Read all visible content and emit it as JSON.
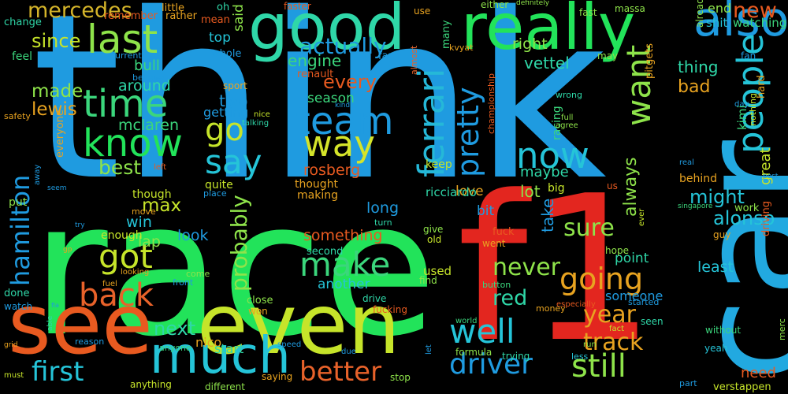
{
  "words": [
    {
      "t": "think",
      "c": "#1f9be0"
    },
    {
      "t": "race",
      "c": "#22e35a"
    },
    {
      "t": "f1",
      "c": "#e3261f"
    },
    {
      "t": "car",
      "c": "#22a9e0"
    },
    {
      "t": "see",
      "c": "#e85a20"
    },
    {
      "t": "even",
      "c": "#c6e42a"
    },
    {
      "t": "good",
      "c": "#2fd7a8"
    },
    {
      "t": "really",
      "c": "#22e35a"
    },
    {
      "t": "much",
      "c": "#25c4d8"
    },
    {
      "t": "also",
      "c": "#1f9be0"
    },
    {
      "t": "last",
      "c": "#8ee34a"
    },
    {
      "t": "time",
      "c": "#3bd67c"
    },
    {
      "t": "know",
      "c": "#22e35a"
    },
    {
      "t": "ferrari",
      "c": "#25b8d8"
    },
    {
      "t": "pretty",
      "c": "#1f9be0"
    },
    {
      "t": "team",
      "c": "#1f9be0"
    },
    {
      "t": "way",
      "c": "#d4e42a"
    },
    {
      "t": "go",
      "c": "#c6e42a"
    },
    {
      "t": "say",
      "c": "#25c4d8"
    },
    {
      "t": "want",
      "c": "#8ee34a"
    },
    {
      "t": "now",
      "c": "#25c4d8"
    },
    {
      "t": "people",
      "c": "#25c4d8"
    },
    {
      "t": "hamilton",
      "c": "#1f9be0"
    },
    {
      "t": "got",
      "c": "#c6e42a"
    },
    {
      "t": "make",
      "c": "#3bd67c"
    },
    {
      "t": "back",
      "c": "#e8622a"
    },
    {
      "t": "best",
      "c": "#8ee34a"
    },
    {
      "t": "going",
      "c": "#e8a320"
    },
    {
      "t": "well",
      "c": "#25c4d8"
    },
    {
      "t": "driver",
      "c": "#1f9be0"
    },
    {
      "t": "still",
      "c": "#8ee34a"
    },
    {
      "t": "better",
      "c": "#e8622a"
    },
    {
      "t": "first",
      "c": "#25c4d8"
    },
    {
      "t": "track",
      "c": "#e8a320"
    },
    {
      "t": "year",
      "c": "#e8a320"
    },
    {
      "t": "alonso",
      "c": "#25c4d8"
    },
    {
      "t": "never",
      "c": "#8ee34a"
    },
    {
      "t": "probably",
      "c": "#8ee34a"
    },
    {
      "t": "sure",
      "c": "#8ee34a"
    },
    {
      "t": "mercedes",
      "c": "#d4b42a"
    },
    {
      "t": "next",
      "c": "#2fd7a8"
    },
    {
      "t": "red",
      "c": "#2fd7a8"
    },
    {
      "t": "new",
      "c": "#e85a20"
    },
    {
      "t": "actually",
      "c": "#1f9be0"
    },
    {
      "t": "every",
      "c": "#e85a20"
    },
    {
      "t": "always",
      "c": "#8ee34a"
    },
    {
      "t": "since",
      "c": "#c6e42a"
    },
    {
      "t": "max",
      "c": "#c6e42a"
    },
    {
      "t": "lewis",
      "c": "#e8a320"
    },
    {
      "t": "made",
      "c": "#8ee34a"
    },
    {
      "t": "something",
      "c": "#e85a20"
    },
    {
      "t": "engine",
      "c": "#3bd67c"
    },
    {
      "t": "right",
      "c": "#8ee34a"
    },
    {
      "t": "vettel",
      "c": "#2fd7a8"
    },
    {
      "t": "rosberg",
      "c": "#e85a20"
    },
    {
      "t": "season",
      "c": "#3bd67c"
    },
    {
      "t": "mclaren",
      "c": "#3bd67c"
    },
    {
      "t": "around",
      "c": "#2fd7a8"
    },
    {
      "t": "bull",
      "c": "#3bd67c"
    },
    {
      "t": "long",
      "c": "#1f9be0"
    },
    {
      "t": "look",
      "c": "#1f9be0"
    },
    {
      "t": "lot",
      "c": "#8ee34a"
    },
    {
      "t": "might",
      "c": "#25c4d8"
    },
    {
      "t": "thing",
      "c": "#2fd7a8"
    },
    {
      "t": "bad",
      "c": "#e8a320"
    },
    {
      "t": "win",
      "c": "#25c4d8"
    },
    {
      "t": "lap",
      "c": "#8ee34a"
    },
    {
      "t": "maybe",
      "c": "#2fd7a8"
    },
    {
      "t": "bit",
      "c": "#1f9be0"
    },
    {
      "t": "love",
      "c": "#e8a320"
    },
    {
      "t": "take",
      "c": "#1f9be0"
    },
    {
      "t": "point",
      "c": "#2fd7a8"
    },
    {
      "t": "least",
      "c": "#25c4d8"
    },
    {
      "t": "someone",
      "c": "#1f9be0"
    },
    {
      "t": "need",
      "c": "#e85a20"
    },
    {
      "t": "end",
      "c": "#8ee34a"
    },
    {
      "t": "great",
      "c": "#c6e42a"
    },
    {
      "t": "kimi",
      "c": "#3bd67c"
    },
    {
      "t": "ricciardo",
      "c": "#2fd7a8"
    },
    {
      "t": "behind",
      "c": "#e8a320"
    },
    {
      "t": "two",
      "c": "#1f9be0"
    },
    {
      "t": "top",
      "c": "#25c4d8"
    },
    {
      "t": "said",
      "c": "#8ee34a"
    },
    {
      "t": "getting",
      "c": "#1f9be0"
    },
    {
      "t": "another",
      "c": "#25c4d8"
    },
    {
      "t": "nico",
      "c": "#e8a320"
    },
    {
      "t": "used",
      "c": "#c6e42a"
    },
    {
      "t": "start",
      "c": "#2fd7a8"
    },
    {
      "t": "work",
      "c": "#8ee34a"
    },
    {
      "t": "racing",
      "c": "#3bd67c"
    },
    {
      "t": "shit",
      "c": "#25c4d8"
    },
    {
      "t": "watching",
      "c": "#3bd67c"
    },
    {
      "t": "enough",
      "c": "#c6e42a"
    },
    {
      "t": "quite",
      "c": "#c6e42a"
    },
    {
      "t": "though",
      "c": "#c6e42a"
    },
    {
      "t": "making",
      "c": "#e8a320"
    },
    {
      "t": "thought",
      "c": "#e8a320"
    },
    {
      "t": "keep",
      "c": "#c6e42a"
    },
    {
      "t": "big",
      "c": "#c6e42a"
    },
    {
      "t": "put",
      "c": "#8ee34a"
    },
    {
      "t": "everyone",
      "c": "#e8a320"
    },
    {
      "t": "feel",
      "c": "#3bd67c"
    },
    {
      "t": "change",
      "c": "#2fd7a8"
    },
    {
      "t": "remember",
      "c": "#e85a20"
    },
    {
      "t": "little",
      "c": "#e8a320"
    },
    {
      "t": "rather",
      "c": "#e8a320"
    },
    {
      "t": "mean",
      "c": "#e85a20"
    },
    {
      "t": "oh",
      "c": "#2fd7a8"
    },
    {
      "t": "faster",
      "c": "#e85a20"
    },
    {
      "t": "use",
      "c": "#e8a320"
    },
    {
      "t": "either",
      "c": "#8ee34a"
    },
    {
      "t": "fast",
      "c": "#8ee34a"
    },
    {
      "t": "massa",
      "c": "#8ee34a"
    },
    {
      "t": "many",
      "c": "#3bd67c"
    },
    {
      "t": "far",
      "c": "#1f9be0"
    },
    {
      "t": "whole",
      "c": "#1f9be0"
    },
    {
      "t": "current",
      "c": "#1f9be0"
    },
    {
      "t": "renault",
      "c": "#e85a20"
    },
    {
      "t": "almost",
      "c": "#e8622a"
    },
    {
      "t": "kvyat",
      "c": "#e8a320"
    },
    {
      "t": "may",
      "c": "#8ee34a"
    },
    {
      "t": "already",
      "c": "#8ee34a"
    },
    {
      "t": "hard",
      "c": "#e8a320"
    },
    {
      "t": "fan",
      "c": "#1f9be0"
    },
    {
      "t": "pitgets",
      "c": "#e8a320"
    },
    {
      "t": "believe",
      "c": "#1f9be0"
    },
    {
      "t": "sport",
      "c": "#e8a320"
    },
    {
      "t": "kind",
      "c": "#1f9be0"
    },
    {
      "t": "wrong",
      "c": "#2fd7a8"
    },
    {
      "t": "day",
      "c": "#1f9be0"
    },
    {
      "t": "full",
      "c": "#8ee34a"
    },
    {
      "t": "agree",
      "c": "#8ee34a"
    },
    {
      "t": "championship",
      "c": "#e85a20"
    },
    {
      "t": "definitely",
      "c": "#8ee34a"
    },
    {
      "t": "safety",
      "c": "#e8a320"
    },
    {
      "t": "nice",
      "c": "#c6e42a"
    },
    {
      "t": "talking",
      "c": "#2fd7a8"
    },
    {
      "t": "nothing",
      "c": "#c6e42a"
    },
    {
      "t": "real",
      "c": "#1f9be0"
    },
    {
      "t": "post",
      "c": "#1f9be0"
    },
    {
      "t": "left",
      "c": "#e85a20"
    },
    {
      "t": "away",
      "c": "#1f9be0"
    },
    {
      "t": "seem",
      "c": "#1f9be0"
    },
    {
      "t": "place",
      "c": "#1f9be0"
    },
    {
      "t": "us",
      "c": "#e85a20"
    },
    {
      "t": "singapore",
      "c": "#3bd67c"
    },
    {
      "t": "try",
      "c": "#1f9be0"
    },
    {
      "t": "move",
      "c": "#e8a320"
    },
    {
      "t": "turn",
      "c": "#2fd7a8"
    },
    {
      "t": "give",
      "c": "#8ee34a"
    },
    {
      "t": "old",
      "c": "#c6e42a"
    },
    {
      "t": "fuck",
      "c": "#e85a20"
    },
    {
      "t": "went",
      "c": "#e8a320"
    },
    {
      "t": "guy",
      "c": "#e8a320"
    },
    {
      "t": "gp",
      "c": "#e8a320"
    },
    {
      "t": "ever",
      "c": "#c6e42a"
    },
    {
      "t": "second",
      "c": "#2fd7a8"
    },
    {
      "t": "hope",
      "c": "#8ee34a"
    },
    {
      "t": "driving",
      "c": "#e85a20"
    },
    {
      "t": "looking",
      "c": "#e8a320"
    },
    {
      "t": "fuel",
      "c": "#e8a320"
    },
    {
      "t": "front",
      "c": "#1f9be0"
    },
    {
      "t": "come",
      "c": "#8ee34a"
    },
    {
      "t": "find",
      "c": "#8ee34a"
    },
    {
      "t": "button",
      "c": "#3bd67c"
    },
    {
      "t": "done",
      "c": "#2fd7a8"
    },
    {
      "t": "watch",
      "c": "#1f9be0"
    },
    {
      "t": "close",
      "c": "#8ee34a"
    },
    {
      "t": "won",
      "c": "#e8a320"
    },
    {
      "t": "drive",
      "c": "#2fd7a8"
    },
    {
      "t": "fucking",
      "c": "#e85a20"
    },
    {
      "t": "especially",
      "c": "#e85a20"
    },
    {
      "t": "started",
      "c": "#1f9be0"
    },
    {
      "t": "fia",
      "c": "#1f9be0"
    },
    {
      "t": "money",
      "c": "#e8a320"
    },
    {
      "t": "seen",
      "c": "#2fd7a8"
    },
    {
      "t": "fact",
      "c": "#c6e42a"
    },
    {
      "t": "world",
      "c": "#3bd67c"
    },
    {
      "t": "without",
      "c": "#3bd67c"
    },
    {
      "t": "run",
      "c": "#8ee34a"
    },
    {
      "t": "yeah",
      "c": "#25c4d8"
    },
    {
      "t": "merc",
      "c": "#8ee34a"
    },
    {
      "t": "grid",
      "c": "#e8a320"
    },
    {
      "t": "able",
      "c": "#2fd7a8"
    },
    {
      "t": "reason",
      "c": "#1f9be0"
    },
    {
      "t": "speed",
      "c": "#1f9be0"
    },
    {
      "t": "anyone",
      "c": "#3bd67c"
    },
    {
      "t": "formula",
      "c": "#8ee34a"
    },
    {
      "t": "trying",
      "c": "#2fd7a8"
    },
    {
      "t": "less",
      "c": "#25c4d8"
    },
    {
      "t": "due",
      "c": "#1f9be0"
    },
    {
      "t": "let",
      "c": "#1f9be0"
    },
    {
      "t": "must",
      "c": "#c6e42a"
    },
    {
      "t": "anything",
      "c": "#c6e42a"
    },
    {
      "t": "different",
      "c": "#8ee34a"
    },
    {
      "t": "saying",
      "c": "#e8a320"
    },
    {
      "t": "stop",
      "c": "#8ee34a"
    },
    {
      "t": "part",
      "c": "#1f9be0"
    },
    {
      "t": "verstappen",
      "c": "#c6e42a"
    }
  ]
}
